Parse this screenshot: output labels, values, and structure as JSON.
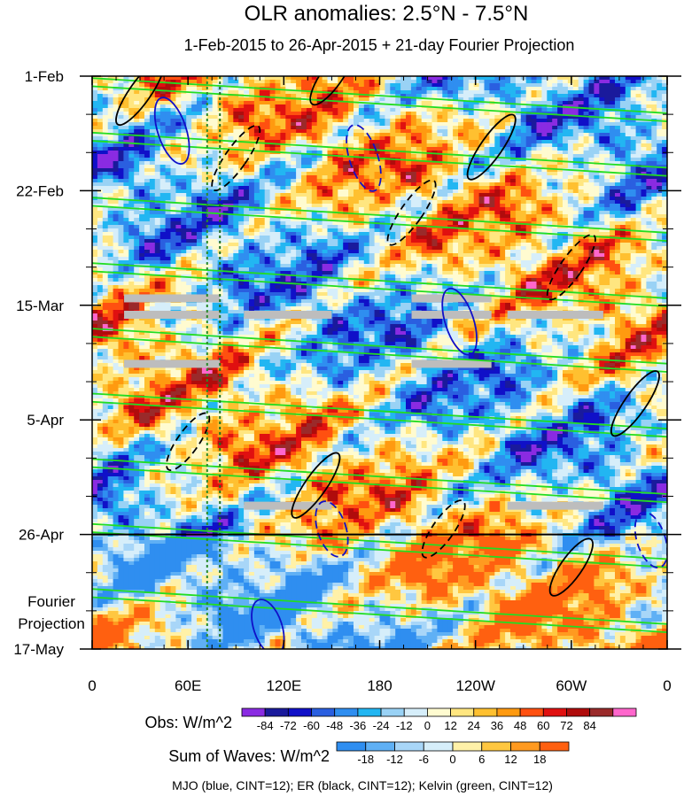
{
  "chart_data": {
    "type": "heatmap",
    "title": "OLR anomalies: 2.5°N - 7.5°N",
    "subtitle": "1-Feb-2015 to 26-Apr-2015 + 21-day Fourier Projection",
    "x_ticks": [
      "0",
      "60E",
      "120E",
      "180",
      "120W",
      "60W",
      "0"
    ],
    "x_tick_lon": [
      0,
      60,
      120,
      180,
      240,
      300,
      360
    ],
    "y_ticks": [
      "1-Feb",
      "22-Feb",
      "15-Mar",
      "5-Apr",
      "26-Apr",
      "17-May"
    ],
    "y_tick_day": [
      0,
      21,
      42,
      63,
      84,
      105
    ],
    "forecast_start_day": 84,
    "end_day": 105,
    "projection_label_1": "Fourier",
    "projection_label_2": "Projection",
    "obs_colorbar": {
      "label": "Obs: W/m^2",
      "ticks": [
        "-84",
        "-72",
        "-60",
        "-48",
        "-36",
        "-24",
        "-12",
        "0",
        "12",
        "24",
        "36",
        "48",
        "60",
        "72",
        "84"
      ],
      "colors": [
        "#8a2be2",
        "#1a1a9c",
        "#1010c8",
        "#2a5fe0",
        "#2f8ef0",
        "#22b6f2",
        "#99d2f5",
        "#d6eefa",
        "#fffbd0",
        "#ffe680",
        "#ffc030",
        "#ff9a10",
        "#ff5010",
        "#e01010",
        "#b00c0c",
        "#9a2a2a",
        "#ff66cc"
      ]
    },
    "waves_colorbar": {
      "label": "Sum of Waves: W/m^2",
      "ticks": [
        "-18",
        "-12",
        "-6",
        "0",
        "6",
        "12",
        "18"
      ],
      "colors": [
        "#2f8ef0",
        "#5fb0f5",
        "#a8d6f8",
        "#d6eefa",
        "#fff1a8",
        "#ffc740",
        "#ff9a20",
        "#ff6010"
      ]
    },
    "footnote": "MJO (blue, CINT=12); ER (black, CINT=12); Kelvin (green, CINT=12)",
    "contour_colors": {
      "MJO": "#1010c8",
      "ER": "#000000",
      "Kelvin": "#22dd22"
    },
    "kelvin_tracks": [
      [
        -20,
        0,
        90
      ],
      [
        -20,
        10,
        90
      ],
      [
        -15,
        22,
        90
      ],
      [
        -15,
        34,
        90
      ],
      [
        -15,
        46,
        90
      ],
      [
        -10,
        58,
        90
      ],
      [
        -10,
        70,
        90
      ],
      [
        -5,
        82,
        90
      ],
      [
        0,
        94,
        90
      ]
    ],
    "er_tracks": [
      [
        30,
        -2,
        40
      ],
      [
        90,
        10,
        40
      ],
      [
        150,
        -5,
        35
      ],
      [
        200,
        20,
        40
      ],
      [
        250,
        8,
        40
      ],
      [
        300,
        30,
        40
      ],
      [
        340,
        55,
        40
      ],
      [
        60,
        62,
        35
      ],
      [
        140,
        70,
        40
      ],
      [
        220,
        78,
        35
      ],
      [
        300,
        85,
        35
      ]
    ],
    "mjo_tracks": [
      [
        50,
        5,
        30
      ],
      [
        170,
        10,
        30
      ],
      [
        230,
        40,
        30
      ],
      [
        150,
        78,
        25
      ],
      [
        110,
        96,
        25
      ],
      [
        350,
        80,
        25
      ]
    ],
    "gray_bars_at_day": [
      40,
      43,
      52,
      78
    ]
  }
}
